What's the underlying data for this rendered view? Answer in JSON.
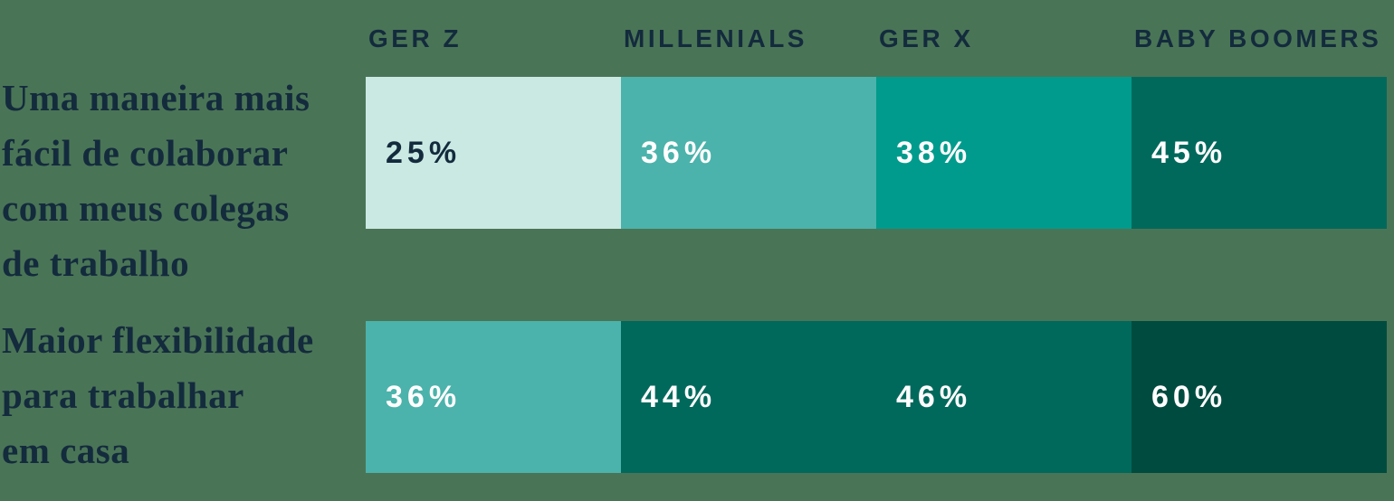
{
  "chart_data": {
    "type": "heatmap",
    "title": "",
    "columns": [
      "GER Z",
      "MILLENIALS",
      "GER X",
      "BABY BOOMERS"
    ],
    "rows": [
      {
        "label": "Uma maneira mais fácil de colaborar com meus colegas de trabalho",
        "label_lines": [
          "Uma maneira mais",
          "fácil de colaborar",
          "com meus colegas",
          "de trabalho"
        ],
        "values": [
          25,
          36,
          38,
          45
        ],
        "value_labels": [
          "25%",
          "36%",
          "38%",
          "45%"
        ]
      },
      {
        "label": "Maior flexibilidade para trabalhar em casa",
        "label_lines": [
          "Maior flexibilidade",
          "para trabalhar",
          "em casa"
        ],
        "values": [
          36,
          44,
          46,
          60
        ],
        "value_labels": [
          "36%",
          "44%",
          "46%",
          "60%"
        ]
      }
    ],
    "legend_position": "none",
    "layout": "equal-width cells per generation column; fill color encodes value on a sequential teal scale"
  },
  "colors": {
    "background": "#4A7456",
    "text_dark": "#132B3D",
    "text_light": "#FFFFFF",
    "scale": {
      "25": "#CBE9E3",
      "36": "#4BB3AB",
      "38": "#009B8C",
      "44": "#00695C",
      "45": "#00695C",
      "46": "#00695C",
      "60": "#004B3F"
    },
    "cells_row1": [
      "#CBE9E3",
      "#4BB3AB",
      "#009B8C",
      "#00695C"
    ],
    "cells_row2": [
      "#4BB3AB",
      "#00695C",
      "#00695C",
      "#004B3F"
    ],
    "value_text_row1": [
      "#132B3D",
      "#FFFFFF",
      "#FFFFFF",
      "#FFFFFF"
    ],
    "value_text_row2": [
      "#FFFFFF",
      "#FFFFFF",
      "#FFFFFF",
      "#FFFFFF"
    ]
  }
}
